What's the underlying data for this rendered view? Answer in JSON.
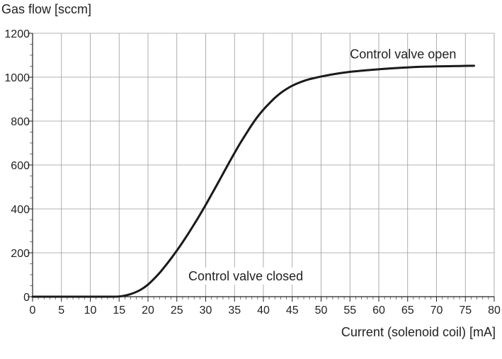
{
  "chart_data": {
    "type": "line",
    "ylabel": "Gas flow [sccm]",
    "xlabel": "Current (solenoid coil) [mA]",
    "xlim": [
      0,
      80
    ],
    "ylim": [
      0,
      1200
    ],
    "x_ticks": [
      0,
      5,
      10,
      15,
      20,
      25,
      30,
      35,
      40,
      45,
      50,
      55,
      60,
      65,
      70,
      75,
      80
    ],
    "y_ticks": [
      0,
      200,
      400,
      600,
      800,
      1000,
      1200
    ],
    "grid": true,
    "series": [
      {
        "x": [
          0,
          5,
          10,
          14,
          15,
          16,
          17,
          18,
          19,
          20,
          21,
          22,
          23,
          24,
          25,
          26,
          27,
          28,
          29,
          30,
          31,
          32,
          33,
          34,
          35,
          36,
          37,
          38,
          39,
          40,
          41,
          42,
          43,
          44,
          45,
          46,
          47,
          48,
          49,
          50,
          52,
          54,
          56,
          58,
          60,
          62,
          64,
          66,
          68,
          70,
          72,
          74,
          76.5
        ],
        "y": [
          0,
          0,
          0,
          0,
          1,
          5,
          12,
          22,
          36,
          55,
          80,
          108,
          140,
          174,
          210,
          248,
          288,
          330,
          373,
          418,
          465,
          512,
          560,
          608,
          655,
          700,
          742,
          783,
          820,
          852,
          880,
          906,
          928,
          946,
          961,
          973,
          983,
          991,
          997,
          1003,
          1013,
          1021,
          1027,
          1032,
          1036,
          1040,
          1043,
          1046,
          1048,
          1049,
          1050,
          1051,
          1052
        ]
      }
    ],
    "annotations": [
      {
        "text": "Control valve open",
        "x": 55,
        "y": 1085
      },
      {
        "text": "Control valve closed",
        "x": 27,
        "y": 75
      }
    ]
  }
}
